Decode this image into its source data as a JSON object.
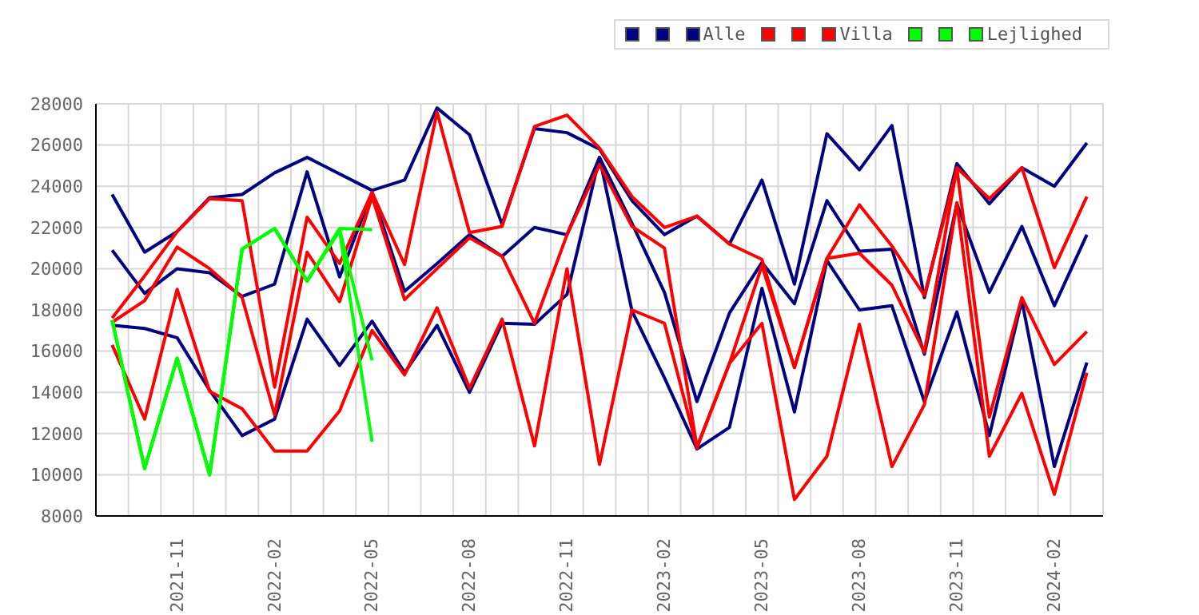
{
  "chart_data": {
    "type": "line",
    "categories": [
      null,
      null,
      "2021-11",
      null,
      null,
      "2022-02",
      null,
      null,
      "2022-05",
      null,
      null,
      "2022-08",
      null,
      null,
      "2022-11",
      null,
      null,
      "2023-02",
      null,
      null,
      "2023-05",
      null,
      null,
      "2023-08",
      null,
      null,
      "2023-11",
      null,
      null,
      "2024-02",
      null
    ],
    "series": [
      {
        "color": "#000080",
        "values": [
          23600,
          20800,
          21800,
          23450,
          23600,
          24650,
          25400,
          24600,
          23800,
          24300,
          27800,
          26500,
          22150,
          26800,
          26600,
          25800,
          23300,
          21650,
          22550,
          21200,
          24300,
          19250,
          26550,
          24800,
          26950,
          18600,
          25100,
          23150,
          24900,
          24000,
          26100
        ]
      },
      {
        "color": "#000080",
        "values": [
          20900,
          18800,
          20000,
          19800,
          18650,
          19250,
          24700,
          19600,
          23700,
          18900,
          20250,
          21650,
          20600,
          22000,
          21650,
          25400,
          22200,
          18850,
          13550,
          17850,
          20300,
          18300,
          23300,
          20850,
          20950,
          15850,
          23150,
          18850,
          22050,
          18200,
          21650
        ]
      },
      {
        "name": "Alle",
        "color": "#000080",
        "values": [
          17250,
          17100,
          16650,
          14100,
          11900,
          12700,
          17550,
          15300,
          17450,
          14950,
          17250,
          14000,
          17350,
          17300,
          18750,
          25400,
          17950,
          14700,
          11250,
          12300,
          19050,
          13050,
          20400,
          18000,
          18200,
          13550,
          17900,
          11900,
          18450,
          10400,
          15450
        ]
      },
      {
        "color": "#ff0000",
        "values": [
          17600,
          19650,
          21800,
          23400,
          23300,
          14250,
          22500,
          20250,
          23700,
          20200,
          27600,
          21750,
          22050,
          26900,
          27450,
          25850,
          23500,
          22000,
          22550,
          21200,
          20450,
          15200,
          20500,
          20750,
          19200,
          15950,
          24900,
          23400,
          24900,
          20050,
          23500
        ]
      },
      {
        "color": "#ff0000",
        "values": [
          17400,
          18450,
          21050,
          20000,
          18600,
          12900,
          20800,
          18400,
          23500,
          18500,
          20000,
          21500,
          20600,
          17350,
          21650,
          25050,
          22050,
          21000,
          11350,
          15400,
          20150,
          15200,
          20500,
          23100,
          21100,
          18700,
          24850,
          12800,
          18600,
          15350,
          16950
        ]
      },
      {
        "name": "Villa",
        "color": "#ff0000",
        "values": [
          16300,
          12700,
          19000,
          14050,
          13200,
          11150,
          11150,
          13100,
          17000,
          14850,
          18100,
          14200,
          17550,
          11400,
          20000,
          10500,
          18000,
          17350,
          11300,
          15400,
          17350,
          8800,
          10900,
          17300,
          10400,
          13400,
          23200,
          10900,
          13950,
          9050,
          14950
        ]
      },
      {
        "color": "#00ff00",
        "values": [
          17500,
          10300,
          15650,
          10000,
          20950,
          21950,
          19400,
          21950,
          21900,
          null,
          null,
          null,
          null,
          null,
          null,
          null,
          null,
          null,
          null,
          null,
          null,
          null,
          null,
          null,
          null,
          null,
          null,
          null,
          null,
          null,
          null
        ]
      },
      {
        "color": "#00ff00",
        "values": [
          17500,
          10300,
          15650,
          10000,
          20950,
          21950,
          19400,
          21900,
          15550,
          null,
          null,
          null,
          null,
          null,
          null,
          null,
          null,
          null,
          null,
          null,
          null,
          null,
          null,
          null,
          null,
          null,
          null,
          null,
          null,
          null,
          null
        ]
      },
      {
        "name": "Lejlighed",
        "color": "#00ff00",
        "values": [
          17500,
          10300,
          15650,
          10000,
          20950,
          21950,
          19400,
          21850,
          11600,
          null,
          null,
          null,
          null,
          null,
          null,
          null,
          null,
          null,
          null,
          null,
          null,
          null,
          null,
          null,
          null,
          null,
          null,
          null,
          null,
          null,
          null
        ]
      }
    ],
    "ylim": [
      8000,
      28000
    ],
    "yticks": [
      8000,
      10000,
      12000,
      14000,
      16000,
      18000,
      20000,
      22000,
      24000,
      26000,
      28000
    ],
    "grid": true,
    "legend": "top right",
    "marker": "none",
    "line_style": "solid"
  }
}
